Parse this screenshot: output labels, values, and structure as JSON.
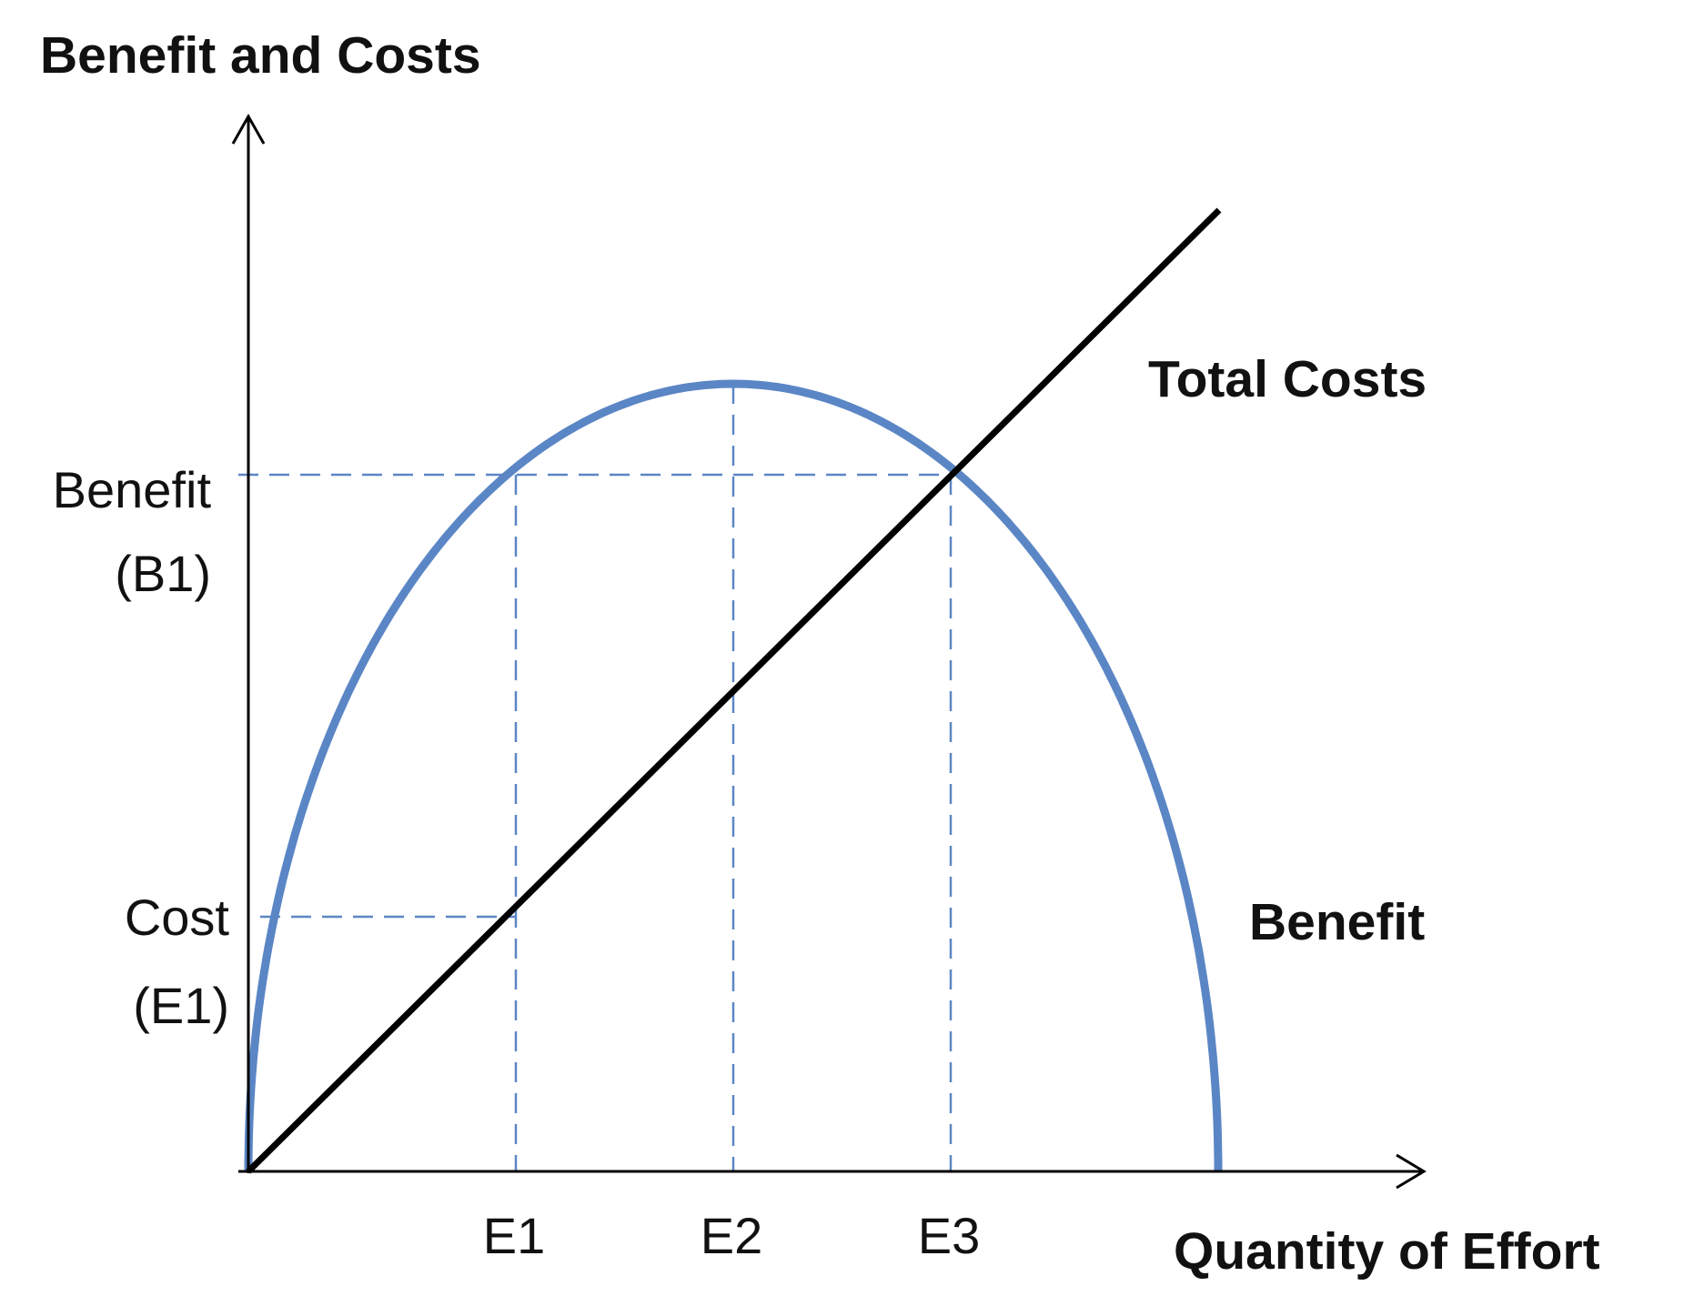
{
  "title": "Benefit and Costs",
  "x_axis_label": "Quantity of Effort",
  "series_labels": {
    "total_costs": "Total Costs",
    "benefit": "Benefit"
  },
  "y_markers": [
    {
      "line1": "Benefit",
      "line2": "(B1)"
    },
    {
      "line1": "Cost",
      "line2": "(E1)"
    }
  ],
  "x_markers": [
    "E1",
    "E2",
    "E3"
  ],
  "colors": {
    "benefit_curve": "#5b86c5",
    "total_costs_line": "#000000",
    "guide_lines": "#5b86c5",
    "axes": "#000000",
    "text": "#111111"
  }
}
